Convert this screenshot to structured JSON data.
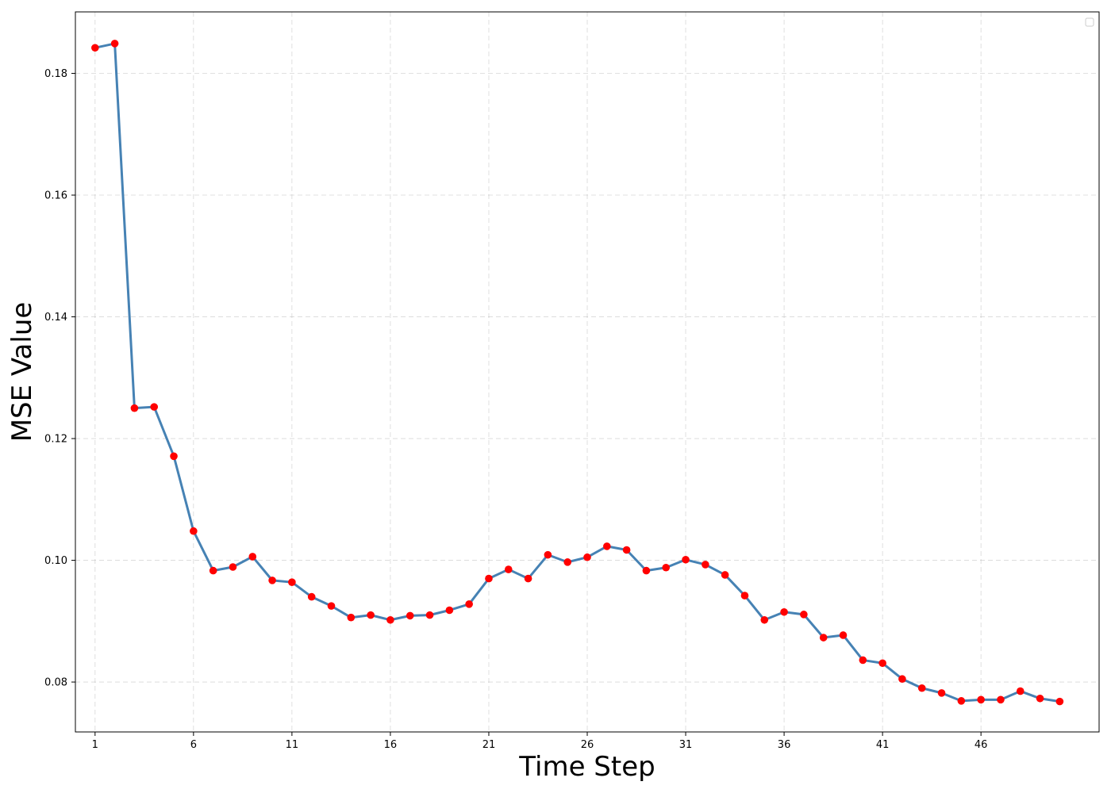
{
  "chart_data": {
    "type": "line",
    "title": "",
    "xlabel": "Time Step",
    "ylabel": "MSE Value",
    "x": [
      1,
      2,
      3,
      4,
      5,
      6,
      7,
      8,
      9,
      10,
      11,
      12,
      13,
      14,
      15,
      16,
      17,
      18,
      19,
      20,
      21,
      22,
      23,
      24,
      25,
      26,
      27,
      28,
      29,
      30,
      31,
      32,
      33,
      34,
      35,
      36,
      37,
      38,
      39,
      40,
      41,
      42,
      43,
      44,
      45,
      46,
      47,
      48,
      49,
      50
    ],
    "series": [
      {
        "values": [
          0.1842,
          0.1849,
          0.125,
          0.1252,
          0.1171,
          0.1048,
          0.0983,
          0.0989,
          0.1006,
          0.0967,
          0.0964,
          0.094,
          0.0925,
          0.0906,
          0.091,
          0.0902,
          0.0909,
          0.091,
          0.0918,
          0.0928,
          0.097,
          0.0985,
          0.097,
          0.1009,
          0.0997,
          0.1005,
          0.1023,
          0.1017,
          0.0983,
          0.0988,
          0.1001,
          0.0993,
          0.0976,
          0.0942,
          0.0902,
          0.0915,
          0.0911,
          0.0873,
          0.0877,
          0.0836,
          0.0831,
          0.0805,
          0.079,
          0.0782,
          0.0769,
          0.0771,
          0.0771,
          0.0785,
          0.0773,
          0.0768
        ],
        "line_color": "#4682b4",
        "marker_color": "#ff0000"
      }
    ],
    "xticks": [
      "1",
      "6",
      "11",
      "16",
      "21",
      "26",
      "31",
      "36",
      "41",
      "46"
    ],
    "yticks": [
      "0.08",
      "0.10",
      "0.12",
      "0.14",
      "0.16",
      "0.18"
    ],
    "xlim": [
      0,
      52
    ],
    "ylim": [
      0.0718,
      0.1901
    ],
    "grid": true,
    "legend": "top-right"
  }
}
